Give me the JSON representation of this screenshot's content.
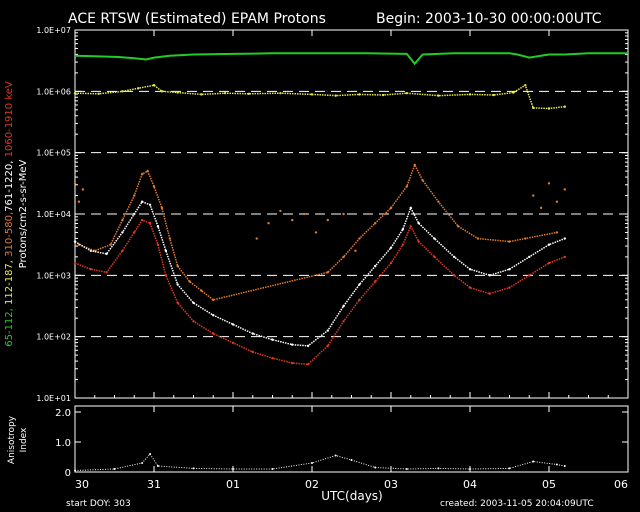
{
  "header": {
    "title": "ACE RTSW (Estimated) EPAM Protons",
    "begin_label": "Begin: 2003-10-30 00:00:00UTC"
  },
  "footer": {
    "start_doy": "start DOY:  303",
    "created": "created: 2003-11-05 20:04:09UTC",
    "xlabel": "UTC(days)"
  },
  "colors": {
    "background": "#000000",
    "axes": "#ffffff",
    "ch_47_68": "#22cc22",
    "ch_115_195": "#e8e84a",
    "ch_310_580": "#e07a30",
    "ch_795_1193": "#ffffff",
    "ch_1060_1900": "#e03a1a",
    "aniso": "#ffffff"
  },
  "chart_data": [
    {
      "type": "scatter",
      "ylabel_parts": [
        {
          "text": "65-112, ",
          "color": "#22cc22"
        },
        {
          "text": "112-187, ",
          "color": "#e8e84a"
        },
        {
          "text": "310-580,",
          "color": "#e07a30"
        },
        {
          "text": "761-1220, ",
          "color": "#ffffff"
        },
        {
          "text": "1060-1910 keV",
          "color": "#e03a1a"
        },
        {
          "text": "Protons/cm2-s-sr-MeV",
          "color": "#ffffff"
        }
      ],
      "log_scale": true,
      "ylim_exp": [
        1,
        7
      ],
      "y_tick_labels": [
        "1.0E+01",
        "1.0E+02",
        "1.0E+03",
        "1.0E+04",
        "1.0E+05",
        "1.0E+06",
        "1.0E+07"
      ],
      "dashed_gridlines_exp": [
        2,
        3,
        4,
        5,
        6
      ],
      "xlim_days": [
        0,
        7
      ],
      "x_tick_labels": [
        "30",
        "31",
        "01",
        "02",
        "03",
        "04",
        "05",
        "06"
      ],
      "series": [
        {
          "key": "ch_47_68",
          "style": "line",
          "points": [
            [
              0,
              6.58
            ],
            [
              0.3,
              6.57
            ],
            [
              0.55,
              6.56
            ],
            [
              0.75,
              6.54
            ],
            [
              0.9,
              6.52
            ],
            [
              1.0,
              6.55
            ],
            [
              1.2,
              6.58
            ],
            [
              1.5,
              6.6
            ],
            [
              2.0,
              6.61
            ],
            [
              2.5,
              6.62
            ],
            [
              3.0,
              6.62
            ],
            [
              3.3,
              6.62
            ],
            [
              3.7,
              6.62
            ],
            [
              4.2,
              6.61
            ],
            [
              4.3,
              6.45
            ],
            [
              4.4,
              6.6
            ],
            [
              4.8,
              6.62
            ],
            [
              5.3,
              6.62
            ],
            [
              5.5,
              6.62
            ],
            [
              5.6,
              6.6
            ],
            [
              5.75,
              6.55
            ],
            [
              6.0,
              6.6
            ],
            [
              6.2,
              6.6
            ],
            [
              6.5,
              6.62
            ],
            [
              7.0,
              6.62
            ]
          ]
        },
        {
          "key": "ch_115_195",
          "style": "dots",
          "points": [
            [
              0,
              5.97
            ],
            [
              0.3,
              5.96
            ],
            [
              0.6,
              6.0
            ],
            [
              0.8,
              6.05
            ],
            [
              1.0,
              6.1
            ],
            [
              1.1,
              6.0
            ],
            [
              1.3,
              5.98
            ],
            [
              1.6,
              5.95
            ],
            [
              1.9,
              5.97
            ],
            [
              2.2,
              5.96
            ],
            [
              2.6,
              5.97
            ],
            [
              3.0,
              5.95
            ],
            [
              3.3,
              5.93
            ],
            [
              3.6,
              5.95
            ],
            [
              3.9,
              5.94
            ],
            [
              4.2,
              5.97
            ],
            [
              4.6,
              5.93
            ],
            [
              5.0,
              5.95
            ],
            [
              5.3,
              5.94
            ],
            [
              5.55,
              5.98
            ],
            [
              5.7,
              6.1
            ],
            [
              5.8,
              5.73
            ],
            [
              6.0,
              5.72
            ],
            [
              6.2,
              5.75
            ]
          ]
        },
        {
          "key": "ch_310_580",
          "style": "dots",
          "points": [
            [
              0.05,
              3.5
            ],
            [
              0.25,
              3.4
            ],
            [
              0.45,
              3.5
            ],
            [
              0.6,
              3.9
            ],
            [
              0.75,
              4.3
            ],
            [
              0.85,
              4.65
            ],
            [
              0.92,
              4.7
            ],
            [
              1.0,
              4.45
            ],
            [
              1.1,
              4.1
            ],
            [
              1.2,
              3.6
            ],
            [
              1.3,
              3.15
            ],
            [
              1.45,
              2.9
            ],
            [
              1.6,
              2.75
            ],
            [
              1.75,
              2.6
            ],
            [
              3.2,
              3.05
            ],
            [
              3.4,
              3.3
            ],
            [
              3.6,
              3.6
            ],
            [
              3.8,
              3.85
            ],
            [
              4.0,
              4.1
            ],
            [
              4.2,
              4.45
            ],
            [
              4.3,
              4.8
            ],
            [
              4.4,
              4.55
            ],
            [
              4.6,
              4.2
            ],
            [
              4.85,
              3.8
            ],
            [
              5.1,
              3.6
            ],
            [
              5.5,
              3.55
            ],
            [
              5.7,
              3.6
            ],
            [
              6.1,
              3.7
            ]
          ]
        },
        {
          "key": "ch_310_580_scatter",
          "color_key": "ch_310_580",
          "style": "scatter",
          "points": [
            [
              0.0,
              4.5
            ],
            [
              0.05,
              4.2
            ],
            [
              0.1,
              4.4
            ],
            [
              2.3,
              3.6
            ],
            [
              2.45,
              3.85
            ],
            [
              2.6,
              4.05
            ],
            [
              2.75,
              3.9
            ],
            [
              2.9,
              4.0
            ],
            [
              3.05,
              3.7
            ],
            [
              3.2,
              3.9
            ],
            [
              3.4,
              4.0
            ],
            [
              3.55,
              3.4
            ],
            [
              5.8,
              4.3
            ],
            [
              5.9,
              4.1
            ],
            [
              6.0,
              4.5
            ],
            [
              6.1,
              4.2
            ],
            [
              6.2,
              4.4
            ]
          ]
        },
        {
          "key": "ch_795_1193",
          "style": "dots",
          "points": [
            [
              0.0,
              3.55
            ],
            [
              0.2,
              3.4
            ],
            [
              0.4,
              3.35
            ],
            [
              0.6,
              3.7
            ],
            [
              0.75,
              4.0
            ],
            [
              0.85,
              4.2
            ],
            [
              0.95,
              4.15
            ],
            [
              1.05,
              3.8
            ],
            [
              1.15,
              3.4
            ],
            [
              1.3,
              2.85
            ],
            [
              1.5,
              2.55
            ],
            [
              1.75,
              2.35
            ],
            [
              2.0,
              2.2
            ],
            [
              2.25,
              2.05
            ],
            [
              2.5,
              1.95
            ],
            [
              2.75,
              1.87
            ],
            [
              2.95,
              1.85
            ],
            [
              3.2,
              2.1
            ],
            [
              3.4,
              2.5
            ],
            [
              3.6,
              2.85
            ],
            [
              3.8,
              3.15
            ],
            [
              4.0,
              3.45
            ],
            [
              4.15,
              3.75
            ],
            [
              4.25,
              4.1
            ],
            [
              4.35,
              3.85
            ],
            [
              4.55,
              3.6
            ],
            [
              4.8,
              3.3
            ],
            [
              5.0,
              3.1
            ],
            [
              5.25,
              3.0
            ],
            [
              5.5,
              3.1
            ],
            [
              5.75,
              3.3
            ],
            [
              6.0,
              3.5
            ],
            [
              6.2,
              3.6
            ]
          ]
        },
        {
          "key": "ch_1060_1900",
          "style": "dots",
          "points": [
            [
              0.0,
              3.2
            ],
            [
              0.2,
              3.1
            ],
            [
              0.4,
              3.05
            ],
            [
              0.6,
              3.4
            ],
            [
              0.75,
              3.7
            ],
            [
              0.85,
              3.9
            ],
            [
              0.95,
              3.85
            ],
            [
              1.05,
              3.5
            ],
            [
              1.15,
              3.0
            ],
            [
              1.3,
              2.55
            ],
            [
              1.5,
              2.25
            ],
            [
              1.75,
              2.05
            ],
            [
              2.0,
              1.9
            ],
            [
              2.25,
              1.75
            ],
            [
              2.5,
              1.65
            ],
            [
              2.75,
              1.57
            ],
            [
              2.95,
              1.55
            ],
            [
              3.2,
              1.85
            ],
            [
              3.4,
              2.25
            ],
            [
              3.6,
              2.6
            ],
            [
              3.8,
              2.9
            ],
            [
              4.0,
              3.2
            ],
            [
              4.15,
              3.5
            ],
            [
              4.25,
              3.8
            ],
            [
              4.35,
              3.55
            ],
            [
              4.55,
              3.3
            ],
            [
              4.8,
              3.0
            ],
            [
              5.0,
              2.8
            ],
            [
              5.25,
              2.7
            ],
            [
              5.5,
              2.8
            ],
            [
              5.75,
              3.0
            ],
            [
              6.0,
              3.2
            ],
            [
              6.2,
              3.3
            ]
          ]
        }
      ]
    },
    {
      "type": "scatter",
      "ylabel": "Anisotropy Index",
      "ylim": [
        0,
        2.2
      ],
      "y_tick_labels": [
        "0",
        "1.0",
        "2.0"
      ],
      "xlim_days": [
        0,
        7
      ],
      "series": [
        {
          "key": "aniso",
          "style": "dots",
          "points": [
            [
              0,
              0.05
            ],
            [
              0.5,
              0.1
            ],
            [
              0.85,
              0.3
            ],
            [
              0.95,
              0.6
            ],
            [
              1.05,
              0.2
            ],
            [
              1.5,
              0.12
            ],
            [
              2.0,
              0.1
            ],
            [
              2.5,
              0.1
            ],
            [
              3.0,
              0.3
            ],
            [
              3.3,
              0.55
            ],
            [
              3.5,
              0.4
            ],
            [
              3.8,
              0.15
            ],
            [
              4.2,
              0.1
            ],
            [
              4.6,
              0.12
            ],
            [
              5.0,
              0.1
            ],
            [
              5.5,
              0.12
            ],
            [
              5.8,
              0.35
            ],
            [
              6.1,
              0.25
            ],
            [
              6.2,
              0.2
            ]
          ]
        }
      ]
    }
  ]
}
